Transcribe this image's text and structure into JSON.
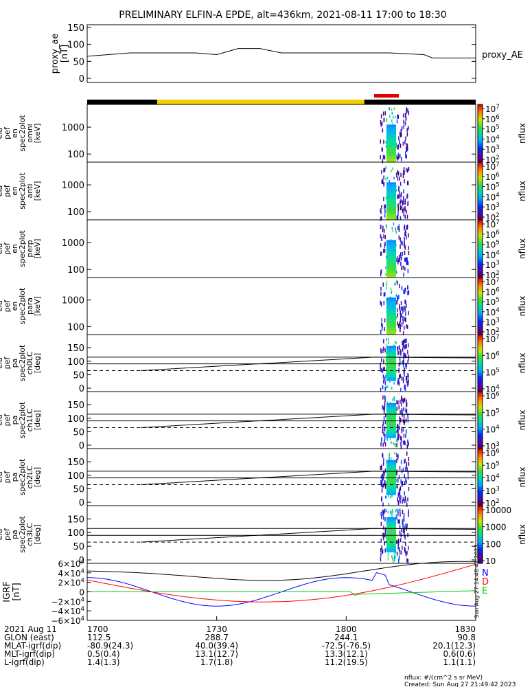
{
  "title": "PRELIMINARY ELFIN-A EPDE, alt=436km, 2021-08-11 17:00 to 18:30",
  "time_range": {
    "start": "1700",
    "end": "1830"
  },
  "chart_data": [
    {
      "type": "line",
      "ylabel_lines": [
        "proxy_ae",
        "[nT]"
      ],
      "yticks": [
        "150",
        "100",
        "50",
        "0"
      ],
      "ylim": [
        0,
        150
      ],
      "legend": "proxy_AE",
      "series": [
        {
          "name": "proxy_AE",
          "x_hhmm": [
            "17:00",
            "17:10",
            "17:25",
            "17:30",
            "17:35",
            "17:40",
            "17:45",
            "17:55",
            "18:10",
            "18:18",
            "18:20",
            "18:30"
          ],
          "values": [
            65,
            75,
            75,
            70,
            88,
            88,
            75,
            75,
            75,
            70,
            60,
            60
          ]
        }
      ]
    },
    {
      "type": "heatmap",
      "ylabel_lines": [
        "ela",
        "pef",
        "en",
        "spec2plot",
        "omni",
        "[keV]"
      ],
      "yticks": [
        "1000",
        "100"
      ],
      "ylim": [
        50,
        7000
      ],
      "colorbar": {
        "label": "nflux",
        "ticks": [
          "10^7",
          "10^6",
          "10^5",
          "10^4",
          "10^3",
          "10^2"
        ],
        "range": [
          100,
          10000000
        ]
      }
    },
    {
      "type": "heatmap",
      "ylabel_lines": [
        "ela",
        "pef",
        "en",
        "spec2plot",
        "anti",
        "[keV]"
      ],
      "yticks": [
        "1000",
        "100"
      ],
      "ylim": [
        50,
        7000
      ],
      "colorbar": {
        "label": "nflux",
        "ticks": [
          "10^7",
          "10^6",
          "10^5",
          "10^4",
          "10^3",
          "10^2"
        ],
        "range": [
          100,
          10000000
        ]
      }
    },
    {
      "type": "heatmap",
      "ylabel_lines": [
        "ela",
        "pef",
        "en",
        "spec2plot",
        "perp",
        "[keV]"
      ],
      "yticks": [
        "1000",
        "100"
      ],
      "ylim": [
        50,
        7000
      ],
      "colorbar": {
        "label": "nflux",
        "ticks": [
          "10^7",
          "10^6",
          "10^5",
          "10^4",
          "10^3",
          "10^2"
        ],
        "range": [
          100,
          10000000
        ]
      }
    },
    {
      "type": "heatmap",
      "ylabel_lines": [
        "ela",
        "pef",
        "en",
        "spec2plot",
        "para",
        "[keV]"
      ],
      "yticks": [
        "1000",
        "100"
      ],
      "ylim": [
        50,
        7000
      ],
      "colorbar": {
        "label": "nflux",
        "ticks": [
          "10^7",
          "10^6",
          "10^5",
          "10^4",
          "10^3",
          "10^2"
        ],
        "range": [
          100,
          10000000
        ]
      }
    },
    {
      "type": "heatmap",
      "ylabel_lines": [
        "ela",
        "pef",
        "pa",
        "spec2plot",
        "ch0LC",
        "[deg]"
      ],
      "yticks": [
        "150",
        "100",
        "50",
        "0"
      ],
      "ylim": [
        0,
        180
      ],
      "colorbar": {
        "label": "nflux",
        "ticks": [
          "10^7",
          "10^6",
          "10^5",
          "10^4"
        ],
        "range": [
          10000,
          10000000
        ]
      }
    },
    {
      "type": "heatmap",
      "ylabel_lines": [
        "ela",
        "pef",
        "pa",
        "spec2plot",
        "ch1LC",
        "[deg]"
      ],
      "yticks": [
        "150",
        "100",
        "50",
        "0"
      ],
      "ylim": [
        0,
        180
      ],
      "colorbar": {
        "label": "nflux",
        "ticks": [
          "10^6",
          "10^5",
          "10^4",
          "10^3"
        ],
        "range": [
          1000,
          1000000
        ]
      }
    },
    {
      "type": "heatmap",
      "ylabel_lines": [
        "ela",
        "pef",
        "pa",
        "spec2plot",
        "ch2LC",
        "[deg]"
      ],
      "yticks": [
        "150",
        "100",
        "50",
        "0"
      ],
      "ylim": [
        0,
        180
      ],
      "colorbar": {
        "label": "nflux",
        "ticks": [
          "10^6",
          "10^5",
          "10^4",
          "10^3",
          "10^2"
        ],
        "range": [
          100,
          1000000
        ]
      }
    },
    {
      "type": "heatmap",
      "ylabel_lines": [
        "ela",
        "pef",
        "pa",
        "spec2plot",
        "ch3LC",
        "[deg]"
      ],
      "yticks": [
        "150",
        "100",
        "50",
        "0"
      ],
      "ylim": [
        0,
        180
      ],
      "colorbar": {
        "label": "nflux",
        "ticks": [
          "10000",
          "1000",
          "100",
          "10"
        ],
        "range": [
          10,
          10000
        ]
      }
    },
    {
      "type": "line",
      "ylabel_lines": [
        "IGRF",
        "[nT]"
      ],
      "yticks": [
        "6×10^4",
        "4×10^4",
        "2×10^4",
        "0",
        "−2×10^4",
        "−4×10^4",
        "−6×10^4"
      ],
      "ylim": [
        -60000,
        60000
      ],
      "legend": [
        "N",
        "E",
        "D"
      ],
      "side_text": "Sun Aug 27 14:48:42 2023",
      "series": [
        {
          "name": "N",
          "color": "#0000ff"
        },
        {
          "name": "E",
          "color": "#00cc00"
        },
        {
          "name": "D",
          "color": "#ff0000"
        }
      ]
    }
  ],
  "x_axis": {
    "tick_labels": [
      "1700",
      "1730",
      "1800",
      "1830"
    ],
    "rows": [
      {
        "label": "2021 Aug 11",
        "values": [
          "1700",
          "1730",
          "1800",
          "1830"
        ]
      },
      {
        "label": "GLON (east)",
        "values": [
          "112.5",
          "288.7",
          "244.1",
          "90.8"
        ]
      },
      {
        "label": "MLAT-igrf(dip)",
        "values": [
          "-80.9(24.3)",
          "40.0(39.4)",
          "-72.5(-76.5)",
          "20.1(12.3)"
        ]
      },
      {
        "label": "MLT-igrf(dip)",
        "values": [
          "0.5(0.4)",
          "13.1(12.7)",
          "13.3(12.1)",
          "0.6(0.6)"
        ]
      },
      {
        "label": "L-igrf(dip)",
        "values": [
          "1.4(1.3)",
          "1.7(1.8)",
          "11.2(19.5)",
          "1.1(1.1)"
        ]
      }
    ]
  },
  "footer": {
    "units": "nflux: #/(cm^2 s sr MeV)",
    "created": "Created: Sun Aug 27 21:49:42 2023"
  },
  "colors": {
    "yellow_bar": "#f0d000",
    "red_bar": "#e00000",
    "black_bar": "#000000"
  }
}
